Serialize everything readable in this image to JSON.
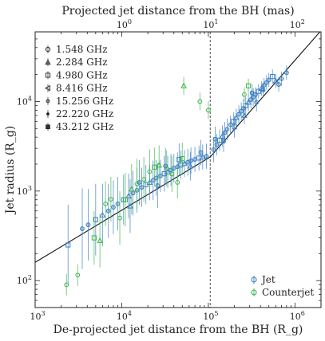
{
  "chart_data": {
    "type": "scatter",
    "xscale": "log",
    "yscale": "log",
    "xlabel": "De-projected jet distance from the BH (R_g)",
    "ylabel": "Jet radius (R_g)",
    "top_xlabel": "Projected jet distance from the BH (mas)",
    "xlim": [
      1000,
      2000000
    ],
    "ylim": [
      50,
      60000
    ],
    "top_xlim": [
      0.1,
      200
    ],
    "x_ticks": [
      {
        "value": 1000,
        "base": "10",
        "exp": "3"
      },
      {
        "value": 10000,
        "base": "10",
        "exp": "4"
      },
      {
        "value": 100000,
        "base": "10",
        "exp": "5"
      },
      {
        "value": 1000000,
        "base": "10",
        "exp": "6"
      }
    ],
    "y_ticks": [
      {
        "value": 100,
        "base": "10",
        "exp": "2"
      },
      {
        "value": 1000,
        "base": "10",
        "exp": "3"
      },
      {
        "value": 10000,
        "base": "10",
        "exp": "4"
      }
    ],
    "top_ticks": [
      {
        "value": 1,
        "base": "10",
        "exp": "0"
      },
      {
        "value": 10,
        "base": "10",
        "exp": "1"
      },
      {
        "value": 100,
        "base": "10",
        "exp": "2"
      }
    ],
    "break_line_x": 105000,
    "fit_line": [
      [
        1000,
        160
      ],
      [
        105000,
        2400
      ],
      [
        2000000,
        62000
      ]
    ],
    "frequency_legend": [
      {
        "label": "1.548 GHz",
        "marker": "circle"
      },
      {
        "label": "2.284 GHz",
        "marker": "triangle-up"
      },
      {
        "label": "4.980 GHz",
        "marker": "square"
      },
      {
        "label": "8.416 GHz",
        "marker": "triangle-left"
      },
      {
        "label": "15.256 GHz",
        "marker": "small-circle"
      },
      {
        "label": "22.220 GHz",
        "marker": "dot"
      },
      {
        "label": "43.212 GHz",
        "marker": "filled-square"
      }
    ],
    "series": [
      {
        "name": "Jet",
        "color": "#3a7ebf",
        "points": [
          [
            3500,
            380
          ],
          [
            4100,
            420
          ],
          [
            5000,
            480
          ],
          [
            6000,
            540
          ],
          [
            7000,
            600
          ],
          [
            8000,
            660
          ],
          [
            9000,
            720
          ],
          [
            10500,
            800
          ],
          [
            12000,
            880
          ],
          [
            13500,
            950
          ],
          [
            15000,
            1020
          ],
          [
            17000,
            1100
          ],
          [
            19000,
            1180
          ],
          [
            21000,
            1250
          ],
          [
            23000,
            1320
          ],
          [
            25000,
            1400
          ],
          [
            28000,
            1480
          ],
          [
            31000,
            1560
          ],
          [
            34000,
            1640
          ],
          [
            37000,
            1720
          ],
          [
            40000,
            1800
          ],
          [
            44000,
            1870
          ],
          [
            48000,
            1950
          ],
          [
            53000,
            2030
          ],
          [
            58000,
            2100
          ],
          [
            63000,
            2180
          ],
          [
            70000,
            2260
          ],
          [
            78000,
            2340
          ],
          [
            86000,
            2400
          ],
          [
            95000,
            2450
          ],
          [
            115000,
            2900
          ],
          [
            125000,
            3300
          ],
          [
            135000,
            3700
          ],
          [
            145000,
            4100
          ],
          [
            155000,
            4500
          ],
          [
            165000,
            4900
          ],
          [
            180000,
            5500
          ],
          [
            195000,
            6000
          ],
          [
            210000,
            6600
          ],
          [
            225000,
            7200
          ],
          [
            240000,
            7800
          ],
          [
            255000,
            8400
          ],
          [
            270000,
            9000
          ],
          [
            290000,
            9800
          ],
          [
            310000,
            10500
          ],
          [
            330000,
            11200
          ],
          [
            350000,
            12000
          ],
          [
            380000,
            13000
          ],
          [
            410000,
            14000
          ],
          [
            440000,
            15200
          ],
          [
            470000,
            16300
          ],
          [
            500000,
            17400
          ],
          [
            550000,
            19000
          ],
          [
            600000,
            17000
          ],
          [
            650000,
            15500
          ],
          [
            700000,
            18000
          ],
          [
            800000,
            21000
          ],
          [
            2400,
            250
          ],
          [
            12500,
            680
          ],
          [
            16000,
            1250
          ],
          [
            26000,
            1150
          ],
          [
            32000,
            1900
          ],
          [
            46000,
            2250
          ],
          [
            62000,
            1900
          ],
          [
            82000,
            2700
          ],
          [
            120000,
            3800
          ],
          [
            150000,
            3600
          ],
          [
            200000,
            5200
          ],
          [
            260000,
            7000
          ],
          [
            320000,
            12500
          ],
          [
            360000,
            9800
          ],
          [
            430000,
            13500
          ]
        ],
        "errors": [
          0.45,
          0.4,
          0.4,
          0.35,
          0.3,
          0.3,
          0.3,
          0.28,
          0.25,
          0.25,
          0.25,
          0.22,
          0.22,
          0.2,
          0.22,
          0.2,
          0.18,
          0.2,
          0.18,
          0.18,
          0.16,
          0.16,
          0.16,
          0.15,
          0.15,
          0.15,
          0.14,
          0.14,
          0.14,
          0.14,
          0.14,
          0.12,
          0.12,
          0.12,
          0.12,
          0.12,
          0.1,
          0.1,
          0.1,
          0.1,
          0.1,
          0.1,
          0.1,
          0.1,
          0.1,
          0.1,
          0.08,
          0.08,
          0.08,
          0.08,
          0.08,
          0.08,
          0.08,
          0.08,
          0.08,
          0.08,
          0.08,
          0.45,
          0.3,
          0.25,
          0.25,
          0.2,
          0.18,
          0.16,
          0.14,
          0.14,
          0.12,
          0.12,
          0.1,
          0.1,
          0.1,
          0.08
        ]
      },
      {
        "name": "Counterjet",
        "color": "#3cb54a",
        "points": [
          [
            2300,
            90
          ],
          [
            3100,
            115
          ],
          [
            4800,
            300
          ],
          [
            5600,
            280
          ],
          [
            6500,
            720
          ],
          [
            7500,
            810
          ],
          [
            9500,
            500
          ],
          [
            11000,
            800
          ],
          [
            13000,
            1050
          ],
          [
            15000,
            1200
          ],
          [
            18000,
            1350
          ],
          [
            21000,
            1650
          ],
          [
            24000,
            1850
          ],
          [
            27000,
            1950
          ],
          [
            33000,
            1800
          ],
          [
            38000,
            1550
          ],
          [
            44000,
            1250
          ],
          [
            50000,
            2300
          ],
          [
            52000,
            15000
          ],
          [
            80000,
            10000
          ],
          [
            100000,
            8000
          ],
          [
            260000,
            12000
          ],
          [
            290000,
            15000
          ]
        ],
        "errors": [
          0.12,
          0.12,
          0.3,
          0.3,
          0.25,
          0.25,
          0.3,
          0.3,
          0.28,
          0.28,
          0.25,
          0.25,
          0.22,
          0.22,
          0.2,
          0.2,
          0.18,
          0.18,
          0.1,
          0.1,
          0.1,
          0.08,
          0.08
        ]
      }
    ]
  }
}
